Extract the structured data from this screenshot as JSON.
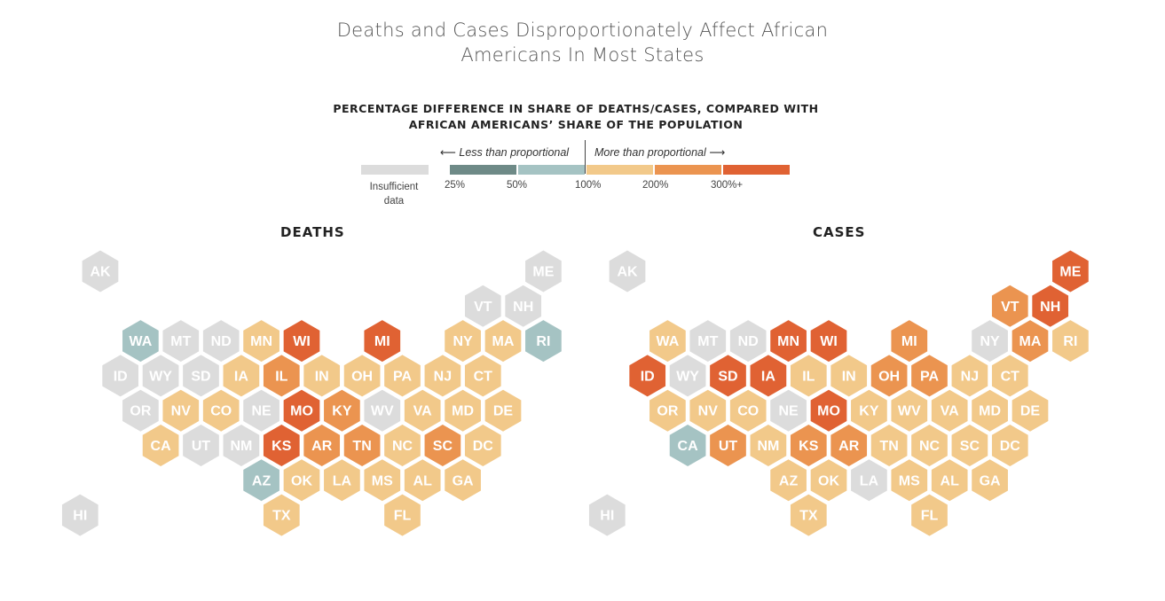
{
  "title_line1": "Deaths and Cases Disproportionately Affect African",
  "title_line2": "Americans In Most States",
  "legend": {
    "title_line1": "PERCENTAGE DIFFERENCE IN SHARE OF DEATHS/CASES, COMPARED WITH",
    "title_line2": "AFRICAN AMERICANS’ SHARE OF THE POPULATION",
    "less_label": "⟵ Less than proportional",
    "more_label": "More than proportional ⟶",
    "insufficient_line1": "Insufficient",
    "insufficient_line2": "data",
    "ticks": [
      "25%",
      "50%",
      "100%",
      "200%",
      "300%+"
    ]
  },
  "colors": {
    "insufficient": "#dcdcdc",
    "under_25": "#6e8a87",
    "under_50": "#a5c3c3",
    "over_100": "#f2c98a",
    "over_200": "#eb9450",
    "over_300": "#e06233"
  },
  "maps": [
    {
      "title": "DEATHS",
      "states": [
        {
          "s": "AK",
          "c": "insufficient"
        },
        {
          "s": "ME",
          "c": "insufficient"
        },
        {
          "s": "VT",
          "c": "insufficient"
        },
        {
          "s": "NH",
          "c": "insufficient"
        },
        {
          "s": "WA",
          "c": "under_50"
        },
        {
          "s": "MT",
          "c": "insufficient"
        },
        {
          "s": "ND",
          "c": "insufficient"
        },
        {
          "s": "MN",
          "c": "over_100"
        },
        {
          "s": "WI",
          "c": "over_300"
        },
        {
          "s": "MI",
          "c": "over_300"
        },
        {
          "s": "NY",
          "c": "over_100"
        },
        {
          "s": "MA",
          "c": "over_100"
        },
        {
          "s": "RI",
          "c": "under_50"
        },
        {
          "s": "ID",
          "c": "insufficient"
        },
        {
          "s": "WY",
          "c": "insufficient"
        },
        {
          "s": "SD",
          "c": "insufficient"
        },
        {
          "s": "IA",
          "c": "over_100"
        },
        {
          "s": "IL",
          "c": "over_200"
        },
        {
          "s": "IN",
          "c": "over_100"
        },
        {
          "s": "OH",
          "c": "over_100"
        },
        {
          "s": "PA",
          "c": "over_100"
        },
        {
          "s": "NJ",
          "c": "over_100"
        },
        {
          "s": "CT",
          "c": "over_100"
        },
        {
          "s": "OR",
          "c": "insufficient"
        },
        {
          "s": "NV",
          "c": "over_100"
        },
        {
          "s": "CO",
          "c": "over_100"
        },
        {
          "s": "NE",
          "c": "insufficient"
        },
        {
          "s": "MO",
          "c": "over_300"
        },
        {
          "s": "KY",
          "c": "over_200"
        },
        {
          "s": "WV",
          "c": "insufficient"
        },
        {
          "s": "VA",
          "c": "over_100"
        },
        {
          "s": "MD",
          "c": "over_100"
        },
        {
          "s": "DE",
          "c": "over_100"
        },
        {
          "s": "CA",
          "c": "over_100"
        },
        {
          "s": "UT",
          "c": "insufficient"
        },
        {
          "s": "NM",
          "c": "insufficient"
        },
        {
          "s": "KS",
          "c": "over_300"
        },
        {
          "s": "AR",
          "c": "over_200"
        },
        {
          "s": "TN",
          "c": "over_200"
        },
        {
          "s": "NC",
          "c": "over_100"
        },
        {
          "s": "SC",
          "c": "over_200"
        },
        {
          "s": "DC",
          "c": "over_100"
        },
        {
          "s": "AZ",
          "c": "under_50"
        },
        {
          "s": "OK",
          "c": "over_100"
        },
        {
          "s": "LA",
          "c": "over_100"
        },
        {
          "s": "MS",
          "c": "over_100"
        },
        {
          "s": "AL",
          "c": "over_100"
        },
        {
          "s": "GA",
          "c": "over_100"
        },
        {
          "s": "HI",
          "c": "insufficient"
        },
        {
          "s": "TX",
          "c": "over_100"
        },
        {
          "s": "FL",
          "c": "over_100"
        }
      ]
    },
    {
      "title": "CASES",
      "states": [
        {
          "s": "AK",
          "c": "insufficient"
        },
        {
          "s": "ME",
          "c": "over_300"
        },
        {
          "s": "VT",
          "c": "over_200"
        },
        {
          "s": "NH",
          "c": "over_300"
        },
        {
          "s": "WA",
          "c": "over_100"
        },
        {
          "s": "MT",
          "c": "insufficient"
        },
        {
          "s": "ND",
          "c": "insufficient"
        },
        {
          "s": "MN",
          "c": "over_300"
        },
        {
          "s": "WI",
          "c": "over_300"
        },
        {
          "s": "MI",
          "c": "over_200"
        },
        {
          "s": "NY",
          "c": "insufficient"
        },
        {
          "s": "MA",
          "c": "over_200"
        },
        {
          "s": "RI",
          "c": "over_100"
        },
        {
          "s": "ID",
          "c": "over_300"
        },
        {
          "s": "WY",
          "c": "insufficient"
        },
        {
          "s": "SD",
          "c": "over_300"
        },
        {
          "s": "IA",
          "c": "over_300"
        },
        {
          "s": "IL",
          "c": "over_100"
        },
        {
          "s": "IN",
          "c": "over_100"
        },
        {
          "s": "OH",
          "c": "over_200"
        },
        {
          "s": "PA",
          "c": "over_200"
        },
        {
          "s": "NJ",
          "c": "over_100"
        },
        {
          "s": "CT",
          "c": "over_100"
        },
        {
          "s": "OR",
          "c": "over_100"
        },
        {
          "s": "NV",
          "c": "over_100"
        },
        {
          "s": "CO",
          "c": "over_100"
        },
        {
          "s": "NE",
          "c": "insufficient"
        },
        {
          "s": "MO",
          "c": "over_300"
        },
        {
          "s": "KY",
          "c": "over_100"
        },
        {
          "s": "WV",
          "c": "over_100"
        },
        {
          "s": "VA",
          "c": "over_100"
        },
        {
          "s": "MD",
          "c": "over_100"
        },
        {
          "s": "DE",
          "c": "over_100"
        },
        {
          "s": "CA",
          "c": "under_50"
        },
        {
          "s": "UT",
          "c": "over_200"
        },
        {
          "s": "NM",
          "c": "over_100"
        },
        {
          "s": "KS",
          "c": "over_200"
        },
        {
          "s": "AR",
          "c": "over_200"
        },
        {
          "s": "TN",
          "c": "over_100"
        },
        {
          "s": "NC",
          "c": "over_100"
        },
        {
          "s": "SC",
          "c": "over_100"
        },
        {
          "s": "DC",
          "c": "over_100"
        },
        {
          "s": "AZ",
          "c": "over_100"
        },
        {
          "s": "OK",
          "c": "over_100"
        },
        {
          "s": "LA",
          "c": "insufficient"
        },
        {
          "s": "MS",
          "c": "over_100"
        },
        {
          "s": "AL",
          "c": "over_100"
        },
        {
          "s": "GA",
          "c": "over_100"
        },
        {
          "s": "HI",
          "c": "insufficient"
        },
        {
          "s": "TX",
          "c": "over_100"
        },
        {
          "s": "FL",
          "c": "over_100"
        }
      ]
    }
  ]
}
